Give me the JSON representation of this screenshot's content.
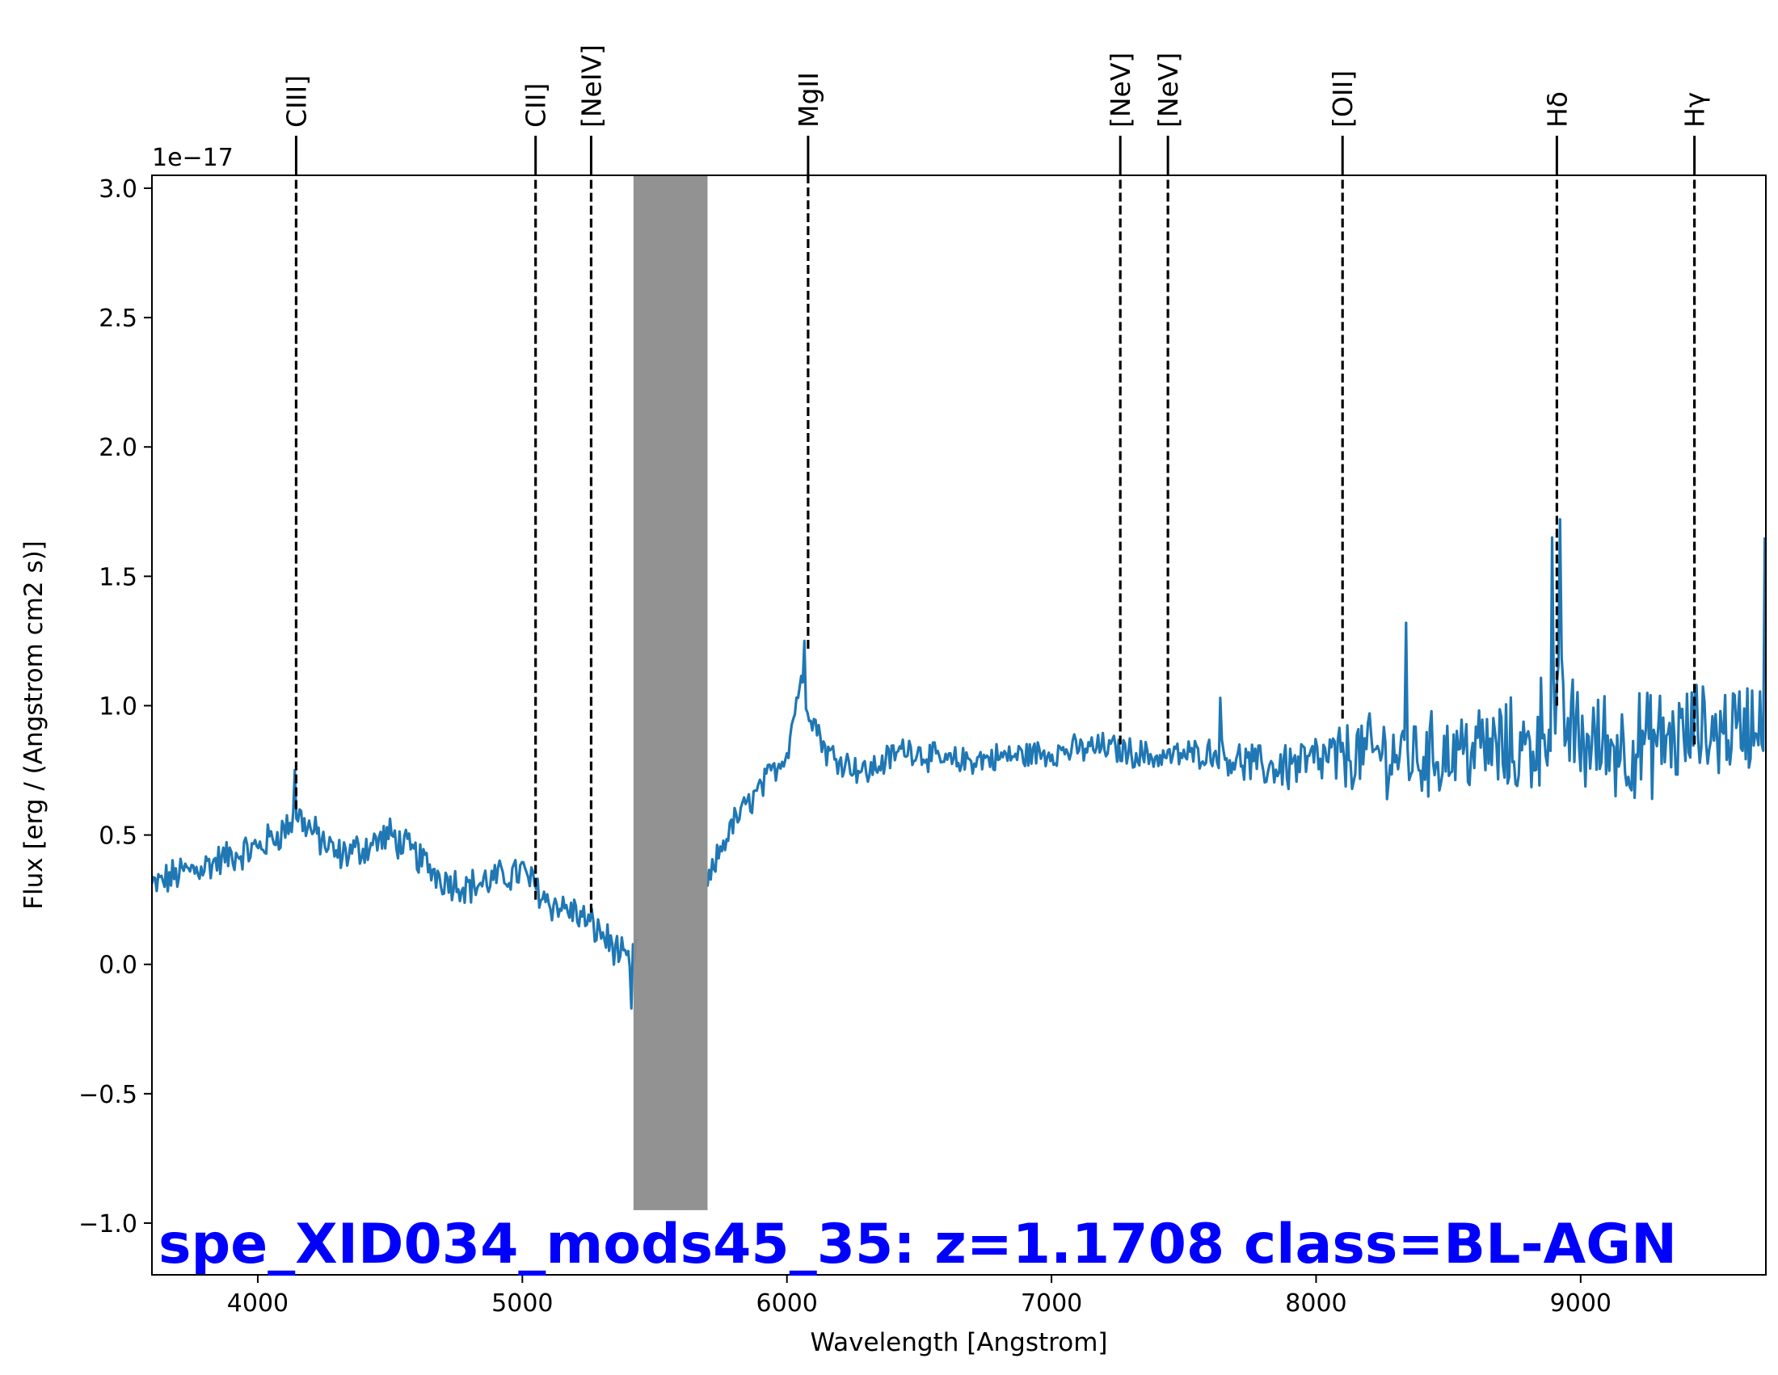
{
  "chart_data": {
    "type": "line",
    "title": "spe_XID034_mods45_35: z=1.1708 class=BL-AGN",
    "title_color": "#0000ff",
    "xlabel": "Wavelength [Angstrom]",
    "ylabel": "Flux [erg / (Angstrom cm2 s)]",
    "y_offset_text": "1e−17",
    "xlim": [
      3600,
      9700
    ],
    "ylim": [
      -1.2,
      3.05
    ],
    "x_ticks": [
      4000,
      5000,
      6000,
      7000,
      8000,
      9000
    ],
    "x_tick_labels": [
      "4000",
      "5000",
      "6000",
      "7000",
      "8000",
      "9000"
    ],
    "y_ticks": [
      -1.0,
      -0.5,
      0.0,
      0.5,
      1.0,
      1.5,
      2.0,
      2.5,
      3.0
    ],
    "y_tick_labels": [
      "−1.0",
      "−0.5",
      "0.0",
      "0.5",
      "1.0",
      "1.5",
      "2.0",
      "2.5",
      "3.0"
    ],
    "series_color": "#1f77b4",
    "shaded_region": {
      "x": [
        5420,
        5700
      ],
      "y": [
        -0.95,
        3.05
      ],
      "color": "#8c8c8c"
    },
    "series_anchors": {
      "x": [
        3600,
        3700,
        3800,
        3900,
        4000,
        4100,
        4150,
        4200,
        4300,
        4400,
        4500,
        4600,
        4700,
        4800,
        4900,
        5000,
        5100,
        5200,
        5300,
        5400,
        5420,
        5700,
        5750,
        5800,
        5900,
        6000,
        6050,
        6080,
        6150,
        6300,
        6450,
        6600,
        6800,
        7000,
        7200,
        7400,
        7600,
        7800,
        8000,
        8100,
        8200,
        8400,
        8600,
        8800,
        8900,
        9000,
        9200,
        9400,
        9600,
        9700
      ],
      "y": [
        0.3,
        0.35,
        0.38,
        0.42,
        0.45,
        0.52,
        0.58,
        0.52,
        0.42,
        0.45,
        0.5,
        0.42,
        0.33,
        0.3,
        0.33,
        0.36,
        0.24,
        0.2,
        0.12,
        0.0,
        0.05,
        0.3,
        0.45,
        0.55,
        0.68,
        0.82,
        1.1,
        1.0,
        0.82,
        0.74,
        0.84,
        0.78,
        0.8,
        0.82,
        0.84,
        0.8,
        0.82,
        0.76,
        0.78,
        0.8,
        0.82,
        0.8,
        0.84,
        0.82,
        1.0,
        0.86,
        0.84,
        0.88,
        0.92,
        0.95
      ],
      "noise_anchor_x": [
        3600,
        5400,
        5700,
        7600,
        7900,
        8300,
        8600,
        8900,
        9700
      ],
      "noise_anchor_amp": [
        0.06,
        0.06,
        0.05,
        0.05,
        0.09,
        0.14,
        0.15,
        0.2,
        0.15
      ]
    },
    "spikes": {
      "x": [
        4140,
        5410,
        6065,
        7640,
        8340,
        8890,
        8920,
        9440,
        9700
      ],
      "y": [
        0.75,
        -0.17,
        1.25,
        1.03,
        1.32,
        1.65,
        1.72,
        1.08,
        1.65
      ]
    },
    "lines": [
      {
        "name": "CIII]",
        "x": 4145,
        "y_bottom": 0.6
      },
      {
        "name": "CII]",
        "x": 5050,
        "y_bottom": 0.25
      },
      {
        "name": "[NeIV]",
        "x": 5260,
        "y_bottom": 0.2
      },
      {
        "name": "MgII",
        "x": 6080,
        "y_bottom": 1.22
      },
      {
        "name": "[NeV]",
        "x": 7260,
        "y_bottom": 0.85
      },
      {
        "name": "[NeV]",
        "x": 7440,
        "y_bottom": 0.85
      },
      {
        "name": "[OII]",
        "x": 8100,
        "y_bottom": 0.95
      },
      {
        "name": "Hδ",
        "x": 8910,
        "y_bottom": 1.0
      },
      {
        "name": "Hγ",
        "x": 9430,
        "y_bottom": 0.85
      }
    ]
  }
}
